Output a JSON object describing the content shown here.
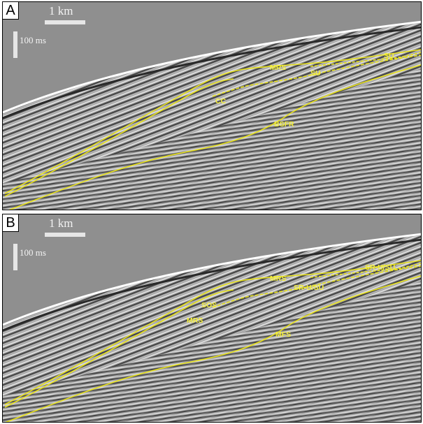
{
  "panels": [
    {
      "letter": "A",
      "scale_h": "1 km",
      "scale_v": "100 ms",
      "labels": [
        "MRS",
        "SU",
        "SU",
        "CC",
        "BSFR"
      ]
    },
    {
      "letter": "B",
      "scale_h": "1 km",
      "scale_v": "100 ms",
      "labels": [
        "MRS",
        "SR-U/SU",
        "SR-U/SU",
        "SOS",
        "MRS",
        "MFS"
      ]
    }
  ],
  "colors": {
    "horizon": "#e8e21a",
    "label": "#f5f03a",
    "background": "#8f8f8f"
  }
}
